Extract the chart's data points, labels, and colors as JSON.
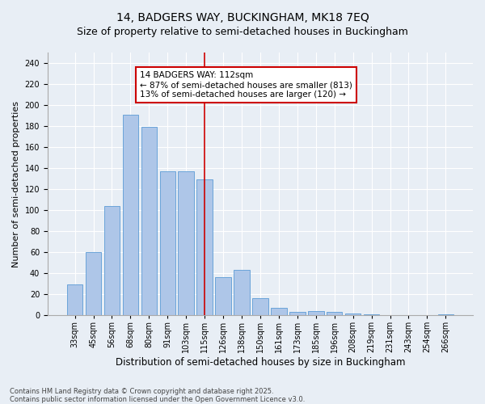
{
  "title": "14, BADGERS WAY, BUCKINGHAM, MK18 7EQ",
  "subtitle": "Size of property relative to semi-detached houses in Buckingham",
  "xlabel": "Distribution of semi-detached houses by size in Buckingham",
  "ylabel": "Number of semi-detached properties",
  "categories": [
    "33sqm",
    "45sqm",
    "56sqm",
    "68sqm",
    "80sqm",
    "91sqm",
    "103sqm",
    "115sqm",
    "126sqm",
    "138sqm",
    "150sqm",
    "161sqm",
    "173sqm",
    "185sqm",
    "196sqm",
    "208sqm",
    "219sqm",
    "231sqm",
    "243sqm",
    "254sqm",
    "266sqm"
  ],
  "values": [
    29,
    60,
    104,
    191,
    179,
    137,
    137,
    129,
    36,
    43,
    16,
    7,
    3,
    4,
    3,
    2,
    1,
    0,
    0,
    0,
    1
  ],
  "bar_color": "#aec6e8",
  "bar_edge_color": "#5b9bd5",
  "vline_x_index": 7,
  "vline_color": "#cc0000",
  "annotation_line1": "14 BADGERS WAY: 112sqm",
  "annotation_line2": "← 87% of semi-detached houses are smaller (813)",
  "annotation_line3": "13% of semi-detached houses are larger (120) →",
  "annotation_box_color": "#cc0000",
  "ylim": [
    0,
    250
  ],
  "yticks": [
    0,
    20,
    40,
    60,
    80,
    100,
    120,
    140,
    160,
    180,
    200,
    220,
    240
  ],
  "background_color": "#e8eef5",
  "footer": "Contains HM Land Registry data © Crown copyright and database right 2025.\nContains public sector information licensed under the Open Government Licence v3.0.",
  "title_fontsize": 10,
  "subtitle_fontsize": 9,
  "xlabel_fontsize": 8.5,
  "ylabel_fontsize": 8,
  "tick_fontsize": 7,
  "annotation_fontsize": 7.5,
  "footer_fontsize": 6
}
